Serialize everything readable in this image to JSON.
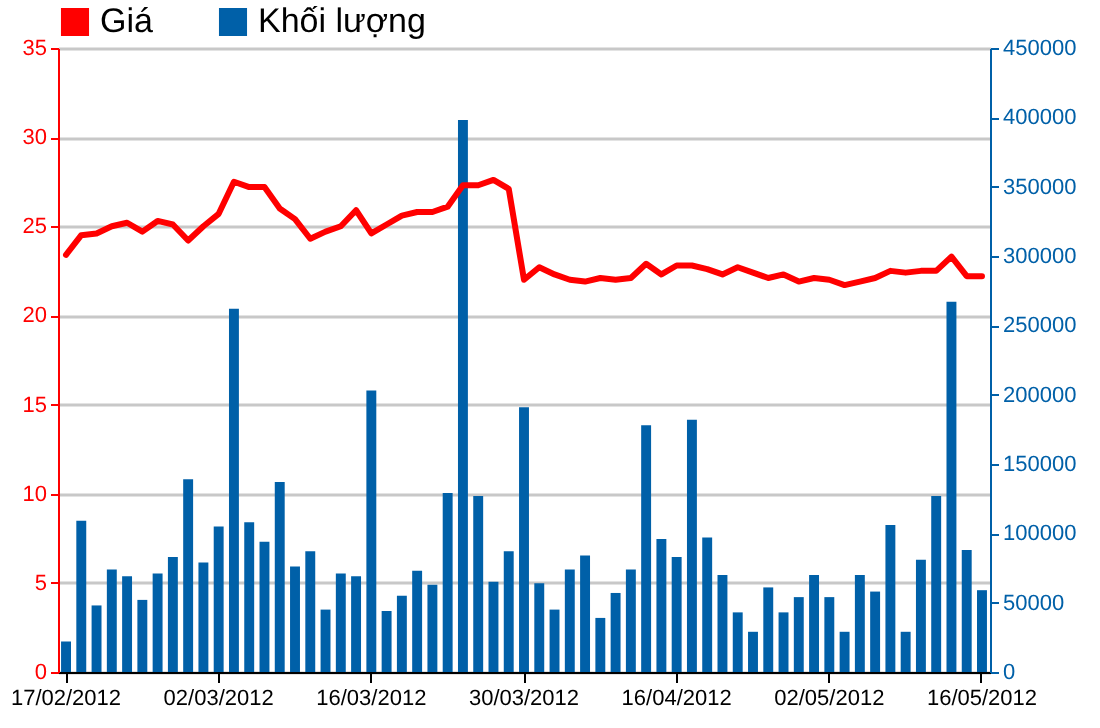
{
  "chart_data": {
    "type": "line",
    "categories": [
      "17/02/2012",
      null,
      null,
      null,
      null,
      null,
      null,
      null,
      null,
      null,
      "02/03/2012",
      null,
      null,
      null,
      null,
      null,
      null,
      null,
      null,
      null,
      "16/03/2012",
      null,
      null,
      null,
      null,
      null,
      null,
      null,
      null,
      null,
      "30/03/2012",
      null,
      null,
      null,
      null,
      null,
      null,
      null,
      null,
      null,
      "16/04/2012",
      null,
      null,
      null,
      null,
      null,
      null,
      null,
      null,
      null,
      "02/05/2012",
      null,
      null,
      null,
      null,
      null,
      null,
      null,
      null,
      null,
      "16/05/2012"
    ],
    "series": [
      {
        "name": "Giá",
        "color": "#ff0000",
        "values": [
          23.4,
          24.5,
          24.6,
          25.0,
          25.2,
          24.7,
          25.3,
          25.1,
          24.2,
          25.0,
          25.7,
          27.5,
          27.2,
          27.2,
          26.0,
          25.4,
          24.3,
          24.7,
          25.0,
          25.9,
          24.6,
          25.1,
          25.6,
          25.8,
          25.8,
          26.1,
          27.3,
          27.3,
          27.6,
          27.1,
          22.0,
          22.7,
          22.3,
          22.0,
          21.9,
          22.1,
          22.0,
          22.1,
          22.9,
          22.3,
          22.8,
          22.8,
          22.6,
          22.3,
          22.7,
          22.4,
          22.1,
          22.3,
          21.9,
          22.1,
          22.0,
          21.7,
          21.9,
          22.1,
          22.5,
          22.4,
          22.5,
          22.5,
          23.3,
          22.2,
          22.2
        ]
      },
      {
        "name": "Khối lượng",
        "type": "bar",
        "axis": "y2",
        "color": "#0060a8",
        "values": [
          22000,
          109000,
          48000,
          74000,
          69000,
          52000,
          71000,
          83000,
          139000,
          79000,
          105000,
          262000,
          108000,
          94000,
          137000,
          76000,
          87000,
          45000,
          71000,
          69000,
          203000,
          44000,
          55000,
          73000,
          63000,
          129000,
          398000,
          127000,
          65000,
          87000,
          191000,
          64000,
          45000,
          74000,
          84000,
          39000,
          57000,
          74000,
          178000,
          96000,
          83000,
          182000,
          97000,
          70000,
          43000,
          29000,
          61000,
          43000,
          54000,
          70000,
          54000,
          29000,
          70000,
          58000,
          106000,
          29000,
          81000,
          127000,
          267000,
          88000,
          59000
        ]
      }
    ],
    "ylim": [
      0,
      35
    ],
    "yticks": [
      0,
      5,
      10,
      15,
      20,
      25,
      30,
      35
    ],
    "y2lim": [
      0,
      450000
    ],
    "y2ticks": [
      0,
      50000,
      100000,
      150000,
      200000,
      250000,
      300000,
      350000,
      400000,
      450000
    ],
    "grid": "y",
    "legend": "top left"
  }
}
